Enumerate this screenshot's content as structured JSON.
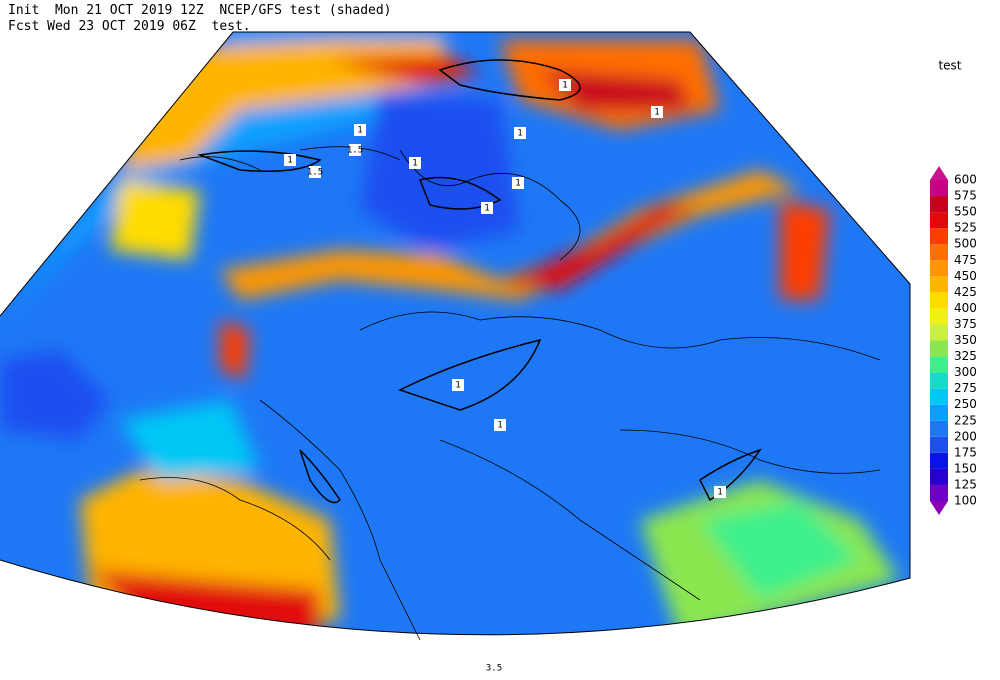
{
  "header": {
    "line1": "Init  Mon 21 OCT 2019 12Z  NCEP/GFS test (shaded)",
    "line2": "Fcst Wed 23 OCT 2019 06Z  test."
  },
  "colorbar": {
    "title": "test",
    "levels": [
      100,
      125,
      150,
      175,
      200,
      225,
      250,
      275,
      300,
      325,
      350,
      375,
      400,
      425,
      450,
      475,
      500,
      525,
      550,
      575,
      600
    ],
    "colors": [
      "#8c00b4",
      "#6e00c8",
      "#2800d2",
      "#0a14e6",
      "#1e50f0",
      "#1e78f5",
      "#0aa0ff",
      "#00c8f5",
      "#14dcc8",
      "#3cf08c",
      "#8ce650",
      "#c8f03c",
      "#f0f014",
      "#ffdc00",
      "#ffb400",
      "#ff9600",
      "#ff6e00",
      "#ff3c00",
      "#e10a0a",
      "#c8001e",
      "#c80082",
      "#c8148c"
    ]
  },
  "contour_labels": [
    "1.5",
    "1.5",
    "1",
    "1",
    "1",
    "1",
    "1",
    "1",
    "1",
    "1",
    "1",
    "1",
    "1",
    "3.5"
  ]
}
